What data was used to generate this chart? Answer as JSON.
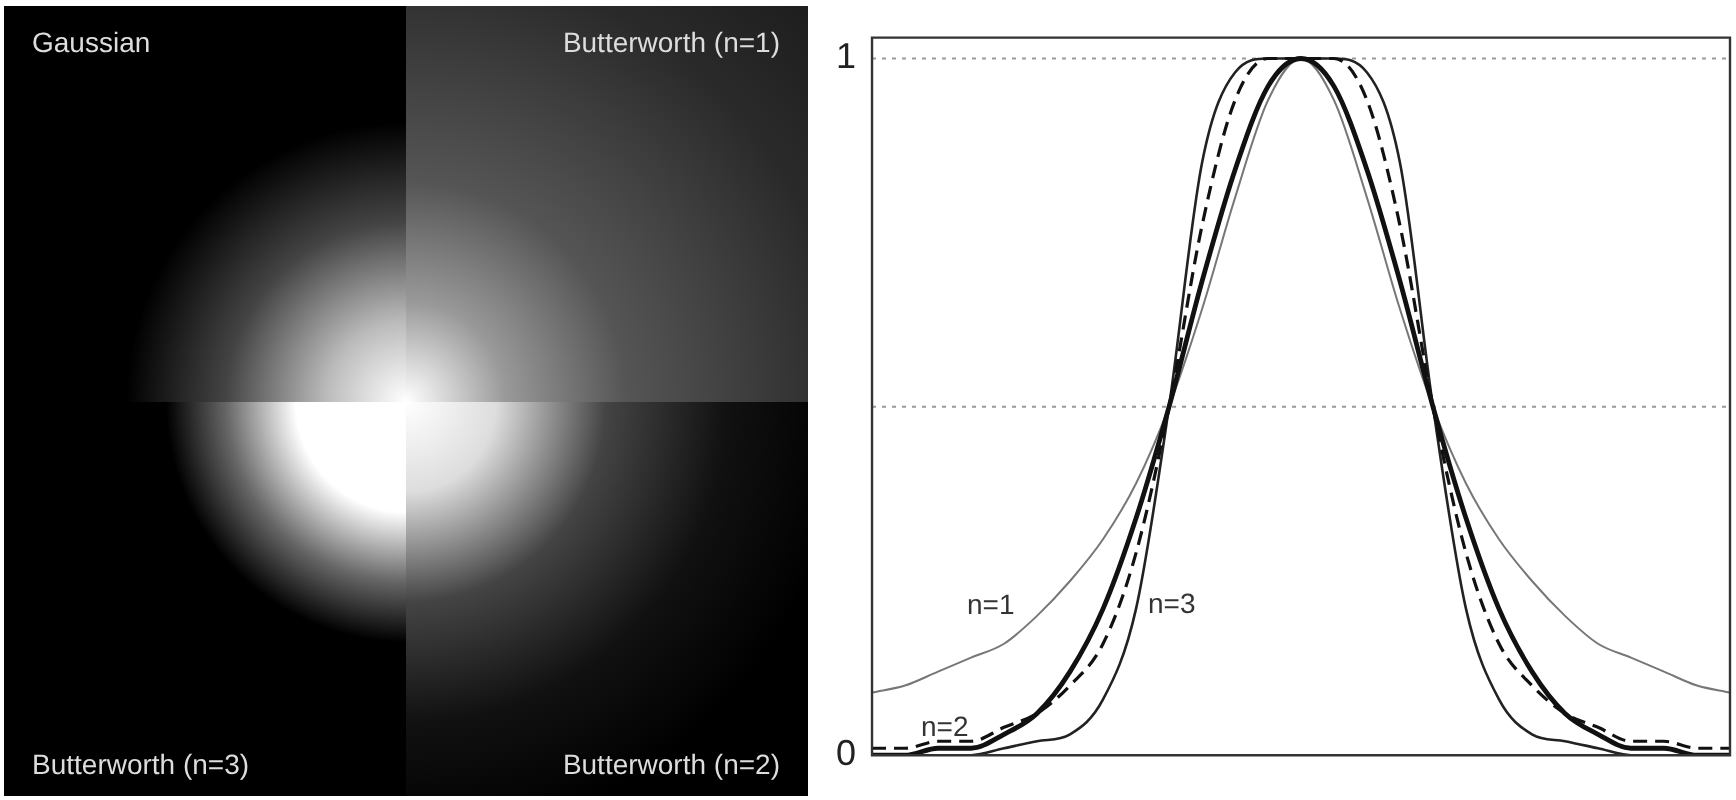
{
  "chart_data": {
    "type": "line",
    "categories": [
      null,
      null,
      null,
      null,
      null,
      null,
      null,
      null,
      null,
      null,
      null,
      null,
      null,
      null,
      null,
      null,
      null,
      null,
      null,
      null,
      null,
      null,
      null,
      null,
      null,
      null,
      null
    ],
    "series": [
      {
        "color": "#111111",
        "values": [
          0,
          0,
          0.01,
          0.01,
          0.03,
          0.06,
          0.12,
          0.21,
          0.34,
          0.5,
          0.68,
          0.84,
          0.96,
          1,
          0.96,
          0.84,
          0.68,
          0.5,
          0.34,
          0.21,
          0.12,
          0.06,
          0.03,
          0.01,
          0.01,
          0,
          0
        ]
      },
      {
        "name": "n=1",
        "color": "#777777",
        "values": [
          0.09,
          0.1,
          0.12,
          0.14,
          0.16,
          0.2,
          0.25,
          0.31,
          0.39,
          0.5,
          0.64,
          0.8,
          0.94,
          1,
          0.94,
          0.8,
          0.64,
          0.5,
          0.39,
          0.31,
          0.25,
          0.2,
          0.16,
          0.14,
          0.12,
          0.1,
          0.09
        ]
      },
      {
        "name": "n=2",
        "color": "#111111",
        "line_style": "dashed",
        "values": [
          0.01,
          0.01,
          0.02,
          0.02,
          0.04,
          0.06,
          0.1,
          0.16,
          0.29,
          0.5,
          0.76,
          0.94,
          1,
          1,
          1,
          0.94,
          0.76,
          0.5,
          0.29,
          0.16,
          0.1,
          0.06,
          0.04,
          0.02,
          0.02,
          0.01,
          0.01
        ]
      },
      {
        "name": "n=3",
        "color": "#222222",
        "values": [
          0,
          0,
          0,
          0,
          0.01,
          0.02,
          0.03,
          0.08,
          0.21,
          0.5,
          0.85,
          0.98,
          1,
          1,
          1,
          0.98,
          0.85,
          0.5,
          0.21,
          0.08,
          0.03,
          0.02,
          0.01,
          0,
          0,
          0,
          0
        ]
      }
    ],
    "ylim": [
      0,
      1.03
    ],
    "yticks": [
      0,
      1
    ],
    "grid": false,
    "legend": false,
    "marker": "none",
    "line_style": "solid",
    "ref_lines": [
      {
        "axis": "y",
        "value": 1,
        "color": "#999999",
        "line_style": "dotted"
      },
      {
        "axis": "y",
        "value": 0.5,
        "color": "#999999",
        "line_style": "dotted"
      }
    ],
    "annotations": [
      "Gaussian",
      "Butterworth (n=1)",
      "Butterworth (n=3)",
      "Butterworth (n=2)"
    ]
  }
}
